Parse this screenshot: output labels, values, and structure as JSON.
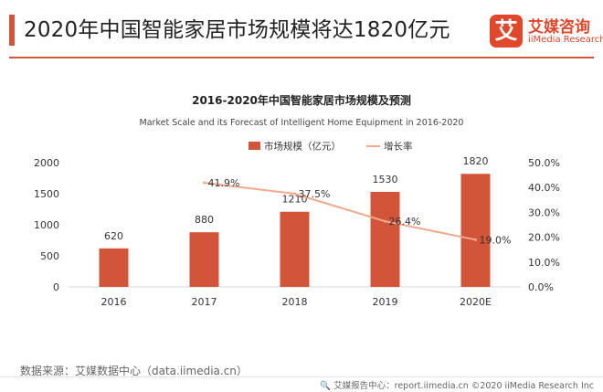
{
  "header": {
    "title": "2020年中国智能家居市场规模将达1820亿元"
  },
  "logo": {
    "mark": "艾",
    "name_cn": "艾媒咨询",
    "name_en": "iiMedia Research"
  },
  "footer": {
    "source": "数据来源：艾媒数据中心（data.iimedia.cn）",
    "copyright": "🔍 艾媒报告中心：report.iimedia.cn  ©2020  iiMedia Research  Inc"
  },
  "colors": {
    "bar": "#d2553a",
    "line": "#f2a98a",
    "accent": "#d2553a"
  },
  "chart_data": {
    "type": "bar",
    "title": "2016-2020年中国智能家居市场规模及预测",
    "subtitle": "Market Scale and its Forecast of Intelligent Home Equipment in 2016-2020",
    "categories": [
      "2016",
      "2017",
      "2018",
      "2019",
      "2020E"
    ],
    "series": [
      {
        "name": "市场规模（亿元）",
        "type": "bar",
        "axis": "left",
        "values": [
          620,
          880,
          1210,
          1530,
          1820
        ],
        "labels": [
          "620",
          "880",
          "1210",
          "1530",
          "1820"
        ]
      },
      {
        "name": "增长率",
        "type": "line",
        "axis": "right",
        "values": [
          null,
          41.9,
          37.5,
          26.4,
          19.0
        ],
        "labels": [
          "",
          "41.9%",
          "37.5%",
          "26.4%",
          "19.0%"
        ]
      }
    ],
    "y_left": {
      "min": 0,
      "max": 2000,
      "ticks": [
        "0",
        "500",
        "1000",
        "1500",
        "2000"
      ]
    },
    "y_right": {
      "min": 0,
      "max": 50,
      "ticks": [
        "0.0%",
        "10.0%",
        "20.0%",
        "30.0%",
        "40.0%",
        "50.0%"
      ]
    },
    "legend_position": "top",
    "grid": false
  }
}
